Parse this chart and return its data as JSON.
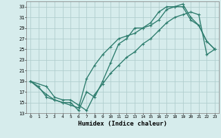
{
  "title": "",
  "xlabel": "Humidex (Indice chaleur)",
  "ylabel": "",
  "bg_color": "#d6ecec",
  "line_color": "#2e7d6e",
  "grid_color": "#b0cece",
  "xlim": [
    -0.5,
    23.5
  ],
  "ylim": [
    13,
    34
  ],
  "yticks": [
    13,
    15,
    17,
    19,
    21,
    23,
    25,
    27,
    29,
    31,
    33
  ],
  "xticks": [
    0,
    1,
    2,
    3,
    4,
    5,
    6,
    7,
    8,
    9,
    10,
    11,
    12,
    13,
    14,
    15,
    16,
    17,
    18,
    19,
    20,
    21,
    22,
    23
  ],
  "line1_x": [
    0,
    1,
    2,
    3,
    4,
    5,
    6,
    7,
    8,
    9,
    10,
    11,
    12,
    13,
    14,
    15,
    16,
    17,
    18,
    19,
    20,
    21,
    22,
    23
  ],
  "line1_y": [
    19.0,
    18.0,
    16.0,
    15.5,
    15.0,
    15.0,
    13.5,
    17.0,
    16.0,
    19.0,
    22.5,
    26.0,
    27.0,
    29.0,
    29.0,
    30.0,
    32.0,
    33.0,
    33.0,
    33.0,
    30.5,
    29.5,
    26.5,
    25.0
  ],
  "line2_x": [
    0,
    2,
    3,
    4,
    5,
    6,
    7,
    8,
    9,
    10,
    11,
    12,
    13,
    14,
    15,
    16,
    17,
    18,
    19,
    20,
    21,
    22,
    23
  ],
  "line2_y": [
    19.0,
    16.5,
    15.5,
    15.0,
    14.5,
    14.0,
    19.5,
    22.0,
    24.0,
    25.5,
    27.0,
    27.5,
    28.0,
    29.0,
    29.5,
    30.5,
    32.5,
    33.0,
    33.5,
    31.0,
    29.5,
    26.5,
    25.0
  ],
  "line3_x": [
    0,
    2,
    3,
    4,
    5,
    6,
    7,
    8,
    9,
    10,
    11,
    12,
    13,
    14,
    15,
    16,
    17,
    18,
    19,
    20,
    21,
    22,
    23
  ],
  "line3_y": [
    19.0,
    18.0,
    16.0,
    15.5,
    15.5,
    14.5,
    13.5,
    16.5,
    18.5,
    20.5,
    22.0,
    23.5,
    24.5,
    26.0,
    27.0,
    28.5,
    30.0,
    31.0,
    31.5,
    32.0,
    31.5,
    24.0,
    25.0
  ]
}
